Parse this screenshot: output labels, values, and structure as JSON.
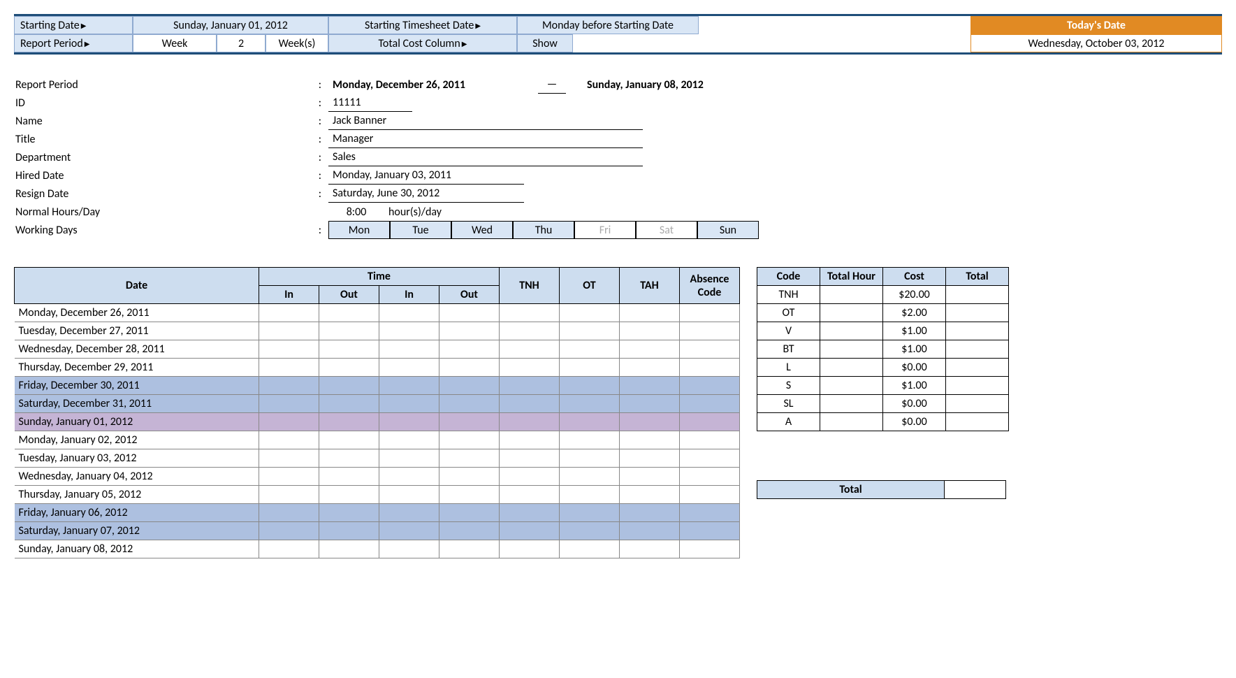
{
  "colors": {
    "header_blue": "#cdddef",
    "light_blue": "#d9e6f5",
    "orange": "#e18a23",
    "border_dark": "#1f4e79",
    "weekend_blue": "#adc0e0",
    "sunday_purple": "#c5b4d5"
  },
  "topbar": {
    "starting_date_label": "Starting Date",
    "starting_date_value": "Sunday, January 01, 2012",
    "starting_ts_label": "Starting Timesheet Date",
    "starting_ts_value": "Monday before Starting Date",
    "report_period_label": "Report Period",
    "report_period_unit": "Week",
    "report_period_num": "2",
    "report_period_suffix": "Week(s)",
    "total_cost_label": "Total Cost Column",
    "total_cost_value": "Show",
    "today_label": "Today's Date",
    "today_value": "Wednesday, October 03, 2012",
    "triangle": "▶"
  },
  "info": {
    "report_period_label": "Report Period",
    "report_period_start": "Monday, December 26, 2011",
    "report_period_dash": "—",
    "report_period_end": "Sunday, January 08, 2012",
    "id_label": "ID",
    "id_value": "11111",
    "name_label": "Name",
    "name_value": "Jack Banner",
    "title_label": "Title",
    "title_value": "Manager",
    "dept_label": "Department",
    "dept_value": "Sales",
    "hired_label": "Hired Date",
    "hired_value": "Monday, January 03, 2011",
    "resign_label": "Resign Date",
    "resign_value": "Saturday, June 30, 2012",
    "normal_label": "Normal Hours/Day",
    "normal_value": "8:00",
    "normal_unit": "hour(s)/day",
    "working_label": "Working Days",
    "days": [
      {
        "label": "Mon",
        "active": true
      },
      {
        "label": "Tue",
        "active": true
      },
      {
        "label": "Wed",
        "active": true
      },
      {
        "label": "Thu",
        "active": true
      },
      {
        "label": "Fri",
        "active": false
      },
      {
        "label": "Sat",
        "active": false
      },
      {
        "label": "Sun",
        "active": true
      }
    ]
  },
  "timesheet": {
    "headers": {
      "date": "Date",
      "time": "Time",
      "in": "In",
      "out": "Out",
      "tnh": "TNH",
      "ot": "OT",
      "tah": "TAH",
      "absence": "Absence Code"
    },
    "rows": [
      {
        "date": "Monday, December 26, 2011",
        "cls": ""
      },
      {
        "date": "Tuesday, December 27, 2011",
        "cls": ""
      },
      {
        "date": "Wednesday, December 28, 2011",
        "cls": ""
      },
      {
        "date": "Thursday, December 29, 2011",
        "cls": ""
      },
      {
        "date": "Friday, December 30, 2011",
        "cls": "row-fri"
      },
      {
        "date": "Saturday, December 31, 2011",
        "cls": "row-sat"
      },
      {
        "date": "Sunday, January 01, 2012",
        "cls": "row-sun"
      },
      {
        "date": "Monday, January 02, 2012",
        "cls": ""
      },
      {
        "date": "Tuesday, January 03, 2012",
        "cls": ""
      },
      {
        "date": "Wednesday, January 04, 2012",
        "cls": ""
      },
      {
        "date": "Thursday, January 05, 2012",
        "cls": ""
      },
      {
        "date": "Friday, January 06, 2012",
        "cls": "row-fri"
      },
      {
        "date": "Saturday, January 07, 2012",
        "cls": "row-sat"
      },
      {
        "date": "Sunday, January 08, 2012",
        "cls": ""
      }
    ]
  },
  "codes": {
    "headers": {
      "code": "Code",
      "hour": "Total Hour",
      "cost": "Cost",
      "total": "Total"
    },
    "rows": [
      {
        "code": "TNH",
        "hour": "",
        "cost": "$20.00",
        "total": ""
      },
      {
        "code": "OT",
        "hour": "",
        "cost": "$2.00",
        "total": ""
      },
      {
        "code": "V",
        "hour": "",
        "cost": "$1.00",
        "total": ""
      },
      {
        "code": "BT",
        "hour": "",
        "cost": "$1.00",
        "total": ""
      },
      {
        "code": "L",
        "hour": "",
        "cost": "$0.00",
        "total": ""
      },
      {
        "code": "S",
        "hour": "",
        "cost": "$1.00",
        "total": ""
      },
      {
        "code": "SL",
        "hour": "",
        "cost": "$0.00",
        "total": ""
      },
      {
        "code": "A",
        "hour": "",
        "cost": "$0.00",
        "total": ""
      }
    ],
    "total_label": "Total",
    "total_value": ""
  }
}
